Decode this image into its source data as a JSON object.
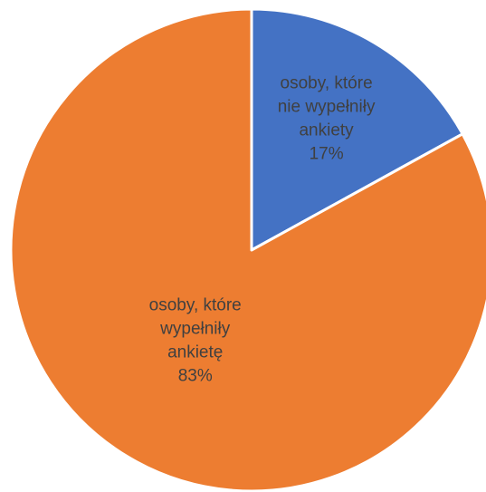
{
  "chart_data": {
    "type": "pie",
    "title": "",
    "slices": [
      {
        "name": "osoby, które nie wypełniły ankiety",
        "label_lines": [
          "osoby, które",
          "nie wypełniły",
          "ankiety"
        ],
        "percent_label": "17%",
        "value": 17,
        "color": "#4472C4"
      },
      {
        "name": "osoby, które wypełniły ankietę",
        "label_lines": [
          "osoby, które",
          "wypełniły",
          "ankietę"
        ],
        "percent_label": "83%",
        "value": 83,
        "color": "#ED7D31"
      }
    ],
    "start_angle": "12 o'clock",
    "direction": "clockwise",
    "legend": "none",
    "slice_border_color": "#ffffff"
  }
}
